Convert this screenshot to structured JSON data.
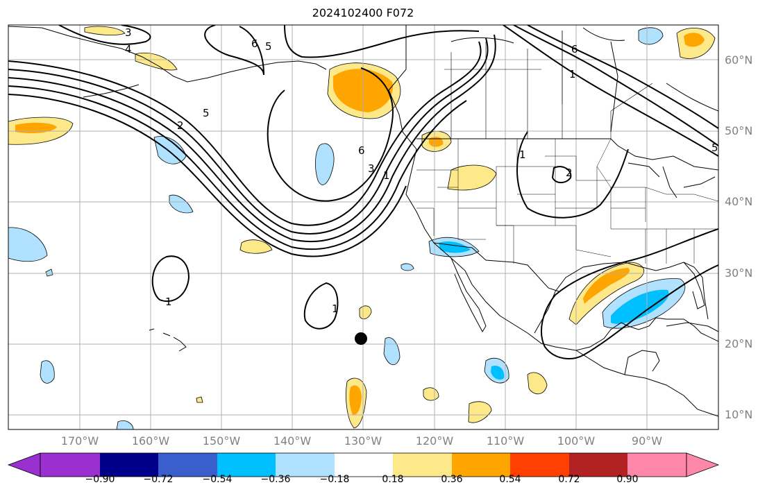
{
  "title": "2024102400 F072",
  "map": {
    "projection": "cylindrical",
    "lon_range": [
      -180,
      -80
    ],
    "lat_range": [
      8,
      65
    ],
    "gridlines": true,
    "marker": {
      "lon": -130.2,
      "lat": 20.7,
      "color": "#000000"
    }
  },
  "lat_labels": [
    "60°N",
    "50°N",
    "40°N",
    "30°N",
    "20°N",
    "10°N"
  ],
  "lon_labels": [
    "170°W",
    "160°W",
    "150°W",
    "140°W",
    "130°W",
    "120°W",
    "110°W",
    "100°W",
    "90°W"
  ],
  "contour_labels": [
    "3",
    "4",
    "6",
    "5",
    "5",
    "2",
    "6",
    "3",
    "1",
    "1",
    "2",
    "1",
    "1",
    "6",
    "1",
    "5"
  ],
  "colorbar": {
    "ticks": [
      "−0.90",
      "−0.72",
      "−0.54",
      "−0.36",
      "−0.18",
      "0.18",
      "0.36",
      "0.54",
      "0.72",
      "0.90"
    ],
    "colors": [
      "#9b30d0",
      "#00008b",
      "#3a5fcd",
      "#00bfff",
      "#b0e2ff",
      "#ffffff",
      "#fde88a",
      "#ffa500",
      "#ff4000",
      "#b22222",
      "#ff88aa"
    ],
    "extend": "both"
  }
}
